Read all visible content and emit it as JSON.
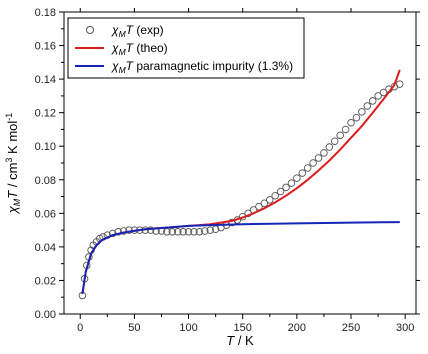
{
  "chart_data": {
    "type": "line",
    "xlabel": {
      "var": "T",
      "rest": " / K"
    },
    "ylabel": {
      "chi": "χ",
      "sub": "M",
      "var": "T",
      "rest": " / cm",
      "sup": "3",
      "rest2": " K mol",
      "sup2": "-1"
    },
    "xlim": [
      -15,
      310
    ],
    "ylim": [
      0.0,
      0.18
    ],
    "x_ticks": [
      0,
      50,
      100,
      150,
      200,
      250,
      300
    ],
    "y_ticks": [
      0.0,
      0.02,
      0.04,
      0.06,
      0.08,
      0.1,
      0.12,
      0.14,
      0.16,
      0.18
    ],
    "grid": false,
    "legend_position": "top-left",
    "series": [
      {
        "name": {
          "pre": "χ",
          "sub": "M",
          "var": "T",
          "post": " (exp)"
        },
        "style": "markers",
        "color": "#555555",
        "x": [
          2,
          4,
          6,
          8,
          10,
          12,
          15,
          18,
          21,
          25,
          30,
          35,
          40,
          45,
          50,
          55,
          60,
          65,
          70,
          75,
          80,
          85,
          90,
          95,
          100,
          105,
          110,
          115,
          120,
          125,
          130,
          135,
          140,
          145,
          150,
          155,
          160,
          165,
          170,
          175,
          180,
          185,
          190,
          195,
          200,
          205,
          210,
          215,
          220,
          225,
          230,
          235,
          240,
          245,
          250,
          255,
          260,
          265,
          270,
          275,
          280,
          285,
          290,
          295
        ],
        "y": [
          0.011,
          0.021,
          0.029,
          0.034,
          0.038,
          0.041,
          0.043,
          0.045,
          0.046,
          0.047,
          0.048,
          0.049,
          0.0495,
          0.05,
          0.05,
          0.05,
          0.05,
          0.05,
          0.0495,
          0.0495,
          0.049,
          0.049,
          0.049,
          0.049,
          0.049,
          0.049,
          0.049,
          0.0495,
          0.05,
          0.0505,
          0.0515,
          0.053,
          0.0545,
          0.056,
          0.058,
          0.06,
          0.062,
          0.064,
          0.066,
          0.068,
          0.0705,
          0.073,
          0.0755,
          0.078,
          0.081,
          0.084,
          0.087,
          0.09,
          0.093,
          0.096,
          0.0995,
          0.103,
          0.1065,
          0.11,
          0.114,
          0.117,
          0.1205,
          0.124,
          0.127,
          0.13,
          0.132,
          0.134,
          0.1355,
          0.137
        ]
      },
      {
        "name": {
          "pre": "χ",
          "sub": "M",
          "var": "T",
          "post": " (theo)"
        },
        "style": "line",
        "color": "#dd1c1c",
        "x": [
          2,
          5,
          10,
          15,
          20,
          30,
          40,
          50,
          60,
          70,
          80,
          90,
          100,
          110,
          120,
          130,
          140,
          150,
          160,
          170,
          180,
          190,
          200,
          210,
          220,
          230,
          240,
          250,
          260,
          270,
          280,
          290,
          295
        ],
        "y": [
          0.012,
          0.025,
          0.036,
          0.041,
          0.044,
          0.047,
          0.0485,
          0.0495,
          0.0505,
          0.051,
          0.0515,
          0.052,
          0.0525,
          0.053,
          0.0535,
          0.0545,
          0.0555,
          0.0575,
          0.06,
          0.063,
          0.0665,
          0.0705,
          0.075,
          0.08,
          0.0855,
          0.0915,
          0.098,
          0.105,
          0.112,
          0.12,
          0.128,
          0.1365,
          0.1455
        ]
      },
      {
        "name": {
          "pre": "χ",
          "sub": "M",
          "var": "T",
          "post": " paramagnetic impurity (1.3%)"
        },
        "style": "line",
        "color": "#1626b8",
        "x": [
          2,
          5,
          10,
          15,
          20,
          30,
          40,
          50,
          60,
          80,
          100,
          120,
          150,
          200,
          250,
          295
        ],
        "y": [
          0.012,
          0.025,
          0.036,
          0.041,
          0.044,
          0.047,
          0.0485,
          0.0495,
          0.0505,
          0.0515,
          0.0525,
          0.053,
          0.0535,
          0.054,
          0.0545,
          0.0548
        ]
      }
    ]
  }
}
